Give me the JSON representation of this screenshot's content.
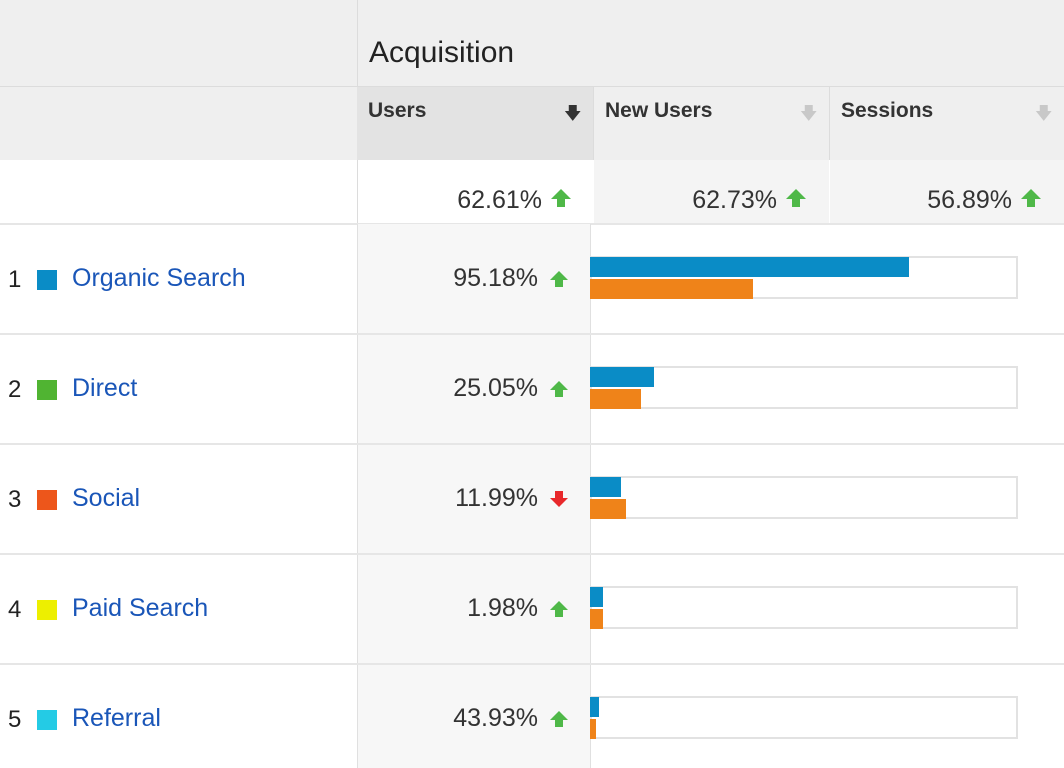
{
  "header": {
    "group_title": "Acquisition",
    "columns": [
      {
        "label": "Users",
        "sorted": true,
        "sort_icon": "arrow-down-icon"
      },
      {
        "label": "New Users",
        "sorted": false,
        "sort_icon": "arrow-down-icon"
      },
      {
        "label": "Sessions",
        "sorted": false,
        "sort_icon": "arrow-down-icon"
      }
    ]
  },
  "totals": [
    {
      "value": "62.61%",
      "trend": "up"
    },
    {
      "value": "62.73%",
      "trend": "up"
    },
    {
      "value": "56.89%",
      "trend": "up"
    }
  ],
  "rows": [
    {
      "rank": "1",
      "channel": "Organic Search",
      "color": "#0a8cc6",
      "users_change": "95.18%",
      "trend": "up",
      "bar_current": 0.745,
      "bar_previous": 0.38
    },
    {
      "rank": "2",
      "channel": "Direct",
      "color": "#50b432",
      "users_change": "25.05%",
      "trend": "up",
      "bar_current": 0.149,
      "bar_previous": 0.119
    },
    {
      "rank": "3",
      "channel": "Social",
      "color": "#ed561b",
      "users_change": "11.99%",
      "trend": "down",
      "bar_current": 0.072,
      "bar_previous": 0.084
    },
    {
      "rank": "4",
      "channel": "Paid Search",
      "color": "#edef00",
      "users_change": "1.98%",
      "trend": "up",
      "bar_current": 0.03,
      "bar_previous": 0.03
    },
    {
      "rank": "5",
      "channel": "Referral",
      "color": "#24cbe5",
      "users_change": "43.93%",
      "trend": "up",
      "bar_current": 0.021,
      "bar_previous": 0.014
    }
  ],
  "colors": {
    "trend_up": "#4fb848",
    "trend_down": "#e8282b",
    "bar_current": "#0a8cc6",
    "bar_previous": "#ef8319",
    "link": "#1a56b8"
  }
}
